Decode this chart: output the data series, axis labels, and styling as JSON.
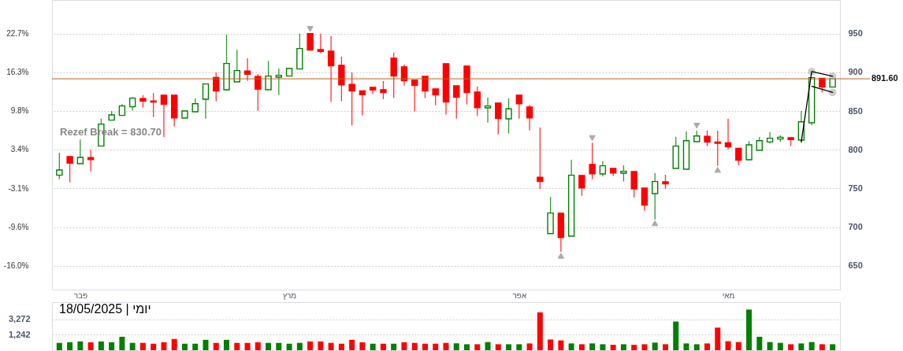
{
  "chart_data": [
    {
      "type": "candlestick",
      "categories": [
        null,
        null,
        "פבר",
        null,
        null,
        null,
        null,
        null,
        null,
        null,
        null,
        null,
        null,
        null,
        null,
        null,
        null,
        null,
        null,
        null,
        null,
        null,
        "מרץ",
        null,
        null,
        null,
        null,
        null,
        null,
        null,
        null,
        null,
        null,
        null,
        null,
        null,
        null,
        null,
        null,
        null,
        null,
        null,
        null,
        null,
        "אפר",
        null,
        null,
        null,
        null,
        null,
        null,
        null,
        null,
        null,
        null,
        null,
        null,
        null,
        null,
        null,
        null,
        null,
        null,
        null,
        "מאי",
        null,
        null,
        null,
        null,
        null,
        null,
        null,
        null,
        null,
        null
      ],
      "ohlc": [
        [
          767.0,
          796.1,
          761.9,
          773.8
        ],
        [
          791.1,
          791.1,
          757.8,
          782.6
        ],
        [
          781.9,
          813.1,
          781.9,
          790.0
        ],
        [
          789.7,
          799.9,
          772.1,
          787.3
        ],
        [
          804.6,
          839.9,
          804.6,
          833.1
        ],
        [
          838.2,
          849.7,
          838.2,
          845.0
        ],
        [
          844.3,
          858.9,
          844.3,
          856.5
        ],
        [
          855.5,
          868.0,
          850.4,
          866.7
        ],
        [
          866.0,
          870.4,
          854.4,
          862.6
        ],
        [
          862.9,
          873.1,
          842.2,
          861.6
        ],
        [
          870.4,
          870.4,
          816.1,
          858.5
        ],
        [
          870.4,
          870.4,
          830.0,
          841.2
        ],
        [
          840.9,
          850.0,
          840.9,
          850.0
        ],
        [
          849.0,
          866.3,
          849.0,
          859.5
        ],
        [
          865.3,
          885.0,
          840.2,
          885.0
        ],
        [
          893.4,
          899.5,
          862.6,
          875.8
        ],
        [
          877.5,
          948.7,
          876.1,
          911.4
        ],
        [
          887.7,
          929.0,
          887.7,
          902.3
        ],
        [
          901.6,
          918.2,
          889.0,
          897.5
        ],
        [
          894.5,
          897.8,
          850.4,
          878.2
        ],
        [
          877.5,
          914.8,
          877.5,
          895.1
        ],
        [
          893.8,
          905.0,
          870.7,
          896.2
        ],
        [
          895.1,
          905.0,
          895.1,
          905.0
        ],
        [
          904.3,
          950.0,
          904.3,
          930.7
        ],
        [
          950.0,
          950.0,
          928.7,
          928.7
        ],
        [
          929.4,
          950.0,
          924.6,
          927.0
        ],
        [
          927.3,
          946.7,
          861.6,
          908.4
        ],
        [
          909.0,
          920.2,
          862.6,
          883.9
        ],
        [
          884.3,
          899.9,
          831.1,
          875.8
        ],
        [
          876.1,
          876.1,
          844.3,
          871.1
        ],
        [
          880.6,
          880.6,
          871.7,
          877.2
        ],
        [
          877.5,
          888.7,
          865.3,
          873.8
        ],
        [
          918.2,
          925.3,
          866.7,
          895.1
        ],
        [
          907.0,
          910.0,
          882.9,
          889.0
        ],
        [
          889.7,
          889.7,
          849.4,
          882.9
        ],
        [
          894.8,
          894.8,
          866.7,
          875.8
        ],
        [
          878.5,
          878.5,
          857.5,
          870.7
        ],
        [
          911.1,
          911.1,
          845.3,
          861.6
        ],
        [
          882.6,
          882.6,
          840.2,
          867.7
        ],
        [
          908.0,
          908.0,
          858.5,
          873.8
        ],
        [
          874.5,
          881.6,
          843.3,
          854.4
        ],
        [
          854.1,
          867.3,
          835.1,
          856.5
        ],
        [
          860.2,
          860.2,
          819.9,
          840.2
        ],
        [
          839.9,
          866.3,
          820.9,
          852.8
        ],
        [
          870.4,
          870.4,
          840.2,
          859.5
        ],
        [
          855.1,
          857.8,
          825.0,
          841.2
        ],
        [
          764.3,
          828.7,
          749.4,
          758.9
        ],
        [
          691.7,
          739.2,
          691.7,
          718.2
        ],
        [
          717.8,
          717.8,
          668.0,
          686.6
        ],
        [
          688.3,
          787.0,
          688.3,
          767.0
        ],
        [
          766.7,
          766.7,
          740.5,
          750.7
        ],
        [
          780.9,
          809.0,
          761.9,
          769.0
        ],
        [
          768.7,
          784.9,
          765.3,
          779.2
        ],
        [
          775.8,
          775.8,
          766.0,
          770.0
        ],
        [
          769.7,
          779.9,
          758.9,
          772.1
        ],
        [
          771.7,
          771.7,
          738.5,
          749.4
        ],
        [
          750.4,
          750.4,
          720.9,
          728.4
        ],
        [
          743.3,
          769.7,
          709.7,
          758.9
        ],
        [
          758.5,
          767.7,
          749.4,
          755.8
        ],
        [
          775.8,
          816.5,
          775.8,
          804.6
        ],
        [
          774.8,
          823.6,
          774.8,
          811.7
        ],
        [
          810.4,
          824.6,
          810.4,
          817.8
        ],
        [
          817.2,
          824.6,
          804.6,
          809.7
        ],
        [
          810.0,
          824.6,
          779.2,
          808.3
        ],
        [
          809.0,
          839.9,
          800.2,
          803.6
        ],
        [
          801.9,
          801.9,
          779.9,
          786.3
        ],
        [
          787.0,
          811.1,
          787.0,
          806.3
        ],
        [
          799.2,
          816.5,
          799.2,
          811.7
        ],
        [
          810.0,
          822.6,
          808.0,
          814.8
        ],
        [
          813.8,
          818.5,
          810.0,
          816.1
        ],
        [
          815.5,
          816.5,
          804.6,
          813.1
        ],
        [
          812.4,
          850.0,
          810.0,
          836.1
        ],
        [
          834.8,
          893.1,
          831.4,
          893.1
        ],
        [
          892.4,
          892.4,
          874.1,
          880.9
        ],
        [
          880.9,
          891.6,
          880.9,
          891.6
        ]
      ],
      "colors": [
        "#008000",
        "#ff0000",
        "#008000",
        "#ff0000",
        "#008000",
        "#008000",
        "#008000",
        "#008000",
        "#ff0000",
        "#ff0000",
        "#ff0000",
        "#ff0000",
        "#008000",
        "#008000",
        "#008000",
        "#ff0000",
        "#008000",
        "#008000",
        "#ff0000",
        "#ff0000",
        "#008000",
        "#008000",
        "#008000",
        "#008000",
        "#ff0000",
        "#ff0000",
        "#ff0000",
        "#ff0000",
        "#ff0000",
        "#ff0000",
        "#ff0000",
        "#ff0000",
        "#ff0000",
        "#ff0000",
        "#ff0000",
        "#ff0000",
        "#ff0000",
        "#ff0000",
        "#ff0000",
        "#ff0000",
        "#ff0000",
        "#008000",
        "#ff0000",
        "#008000",
        "#ff0000",
        "#ff0000",
        "#ff0000",
        "#008000",
        "#ff0000",
        "#008000",
        "#ff0000",
        "#ff0000",
        "#008000",
        "#ff0000",
        "#008000",
        "#ff0000",
        "#ff0000",
        "#008000",
        "#ff0000",
        "#008000",
        "#008000",
        "#008000",
        "#ff0000",
        "#ff0000",
        "#ff0000",
        "#ff0000",
        "#008000",
        "#008000",
        "#008000",
        "#008000",
        "#ff0000",
        "#008000",
        "#008000",
        "#ff0000",
        "#008000"
      ],
      "ylim": [
        619.2,
        993.4
      ],
      "yticks": [
        650,
        700,
        750,
        800,
        850,
        900,
        950
      ],
      "y2lim": [
        -20.0,
        28.3
      ],
      "y2ticks": [
        {
          "value": 22.7,
          "label": "22.7%"
        },
        {
          "value": 16.3,
          "label": "16.3%"
        },
        {
          "value": 9.8,
          "label": "9.8%"
        },
        {
          "value": 3.4,
          "label": "3.4%"
        },
        {
          "value": -3.1,
          "label": "-3.1%"
        },
        {
          "value": -9.6,
          "label": "-9.6%"
        },
        {
          "value": -16.0,
          "label": "-16.0%"
        }
      ],
      "grid": "y",
      "ref_lines": [
        {
          "axis": "y",
          "value": 891.6,
          "label": "891.60",
          "color": "#c0601c"
        }
      ],
      "annotations": [
        "Rezef Break = 830.70"
      ],
      "series": [
        {
          "type": "scatter",
          "color": "#888888",
          "marker": "triangle",
          "values": [
            null,
            null,
            null,
            null,
            null,
            null,
            null,
            null,
            null,
            null,
            null,
            null,
            null,
            null,
            null,
            null,
            null,
            null,
            null,
            null,
            null,
            null,
            null,
            null,
            956,
            null,
            null,
            null,
            null,
            null,
            null,
            null,
            null,
            null,
            null,
            null,
            null,
            null,
            null,
            null,
            null,
            null,
            null,
            null,
            null,
            null,
            null,
            null,
            663,
            null,
            null,
            815,
            null,
            null,
            null,
            null,
            null,
            705,
            null,
            null,
            null,
            831,
            null,
            774,
            null,
            null,
            null,
            null,
            null,
            null,
            null,
            null,
            null,
            null,
            null
          ]
        },
        {
          "type": "line",
          "color": "#000000",
          "marker": "none",
          "values": [
            null,
            null,
            null,
            null,
            null,
            null,
            null,
            null,
            null,
            null,
            null,
            null,
            null,
            null,
            null,
            null,
            null,
            null,
            null,
            null,
            null,
            null,
            null,
            null,
            null,
            null,
            null,
            null,
            null,
            null,
            null,
            null,
            null,
            null,
            null,
            null,
            null,
            null,
            null,
            null,
            null,
            null,
            null,
            null,
            null,
            null,
            null,
            null,
            null,
            null,
            null,
            null,
            null,
            null,
            null,
            null,
            null,
            null,
            null,
            null,
            null,
            null,
            null,
            null,
            null,
            null,
            null,
            null,
            null,
            null,
            null,
            810,
            901,
            null,
            895
          ]
        },
        {
          "type": "line",
          "color": "#000000",
          "marker": "none",
          "values": [
            null,
            null,
            null,
            null,
            null,
            null,
            null,
            null,
            null,
            null,
            null,
            null,
            null,
            null,
            null,
            null,
            null,
            null,
            null,
            null,
            null,
            null,
            null,
            null,
            null,
            null,
            null,
            null,
            null,
            null,
            null,
            null,
            null,
            null,
            null,
            null,
            null,
            null,
            null,
            null,
            null,
            null,
            null,
            null,
            null,
            null,
            null,
            null,
            null,
            null,
            null,
            null,
            null,
            null,
            null,
            null,
            null,
            null,
            null,
            null,
            null,
            null,
            null,
            null,
            null,
            null,
            null,
            null,
            null,
            null,
            null,
            null,
            882,
            null,
            874
          ]
        },
        {
          "type": "scatter",
          "color": "#aaaaaa",
          "marker": "circle",
          "values": [
            null,
            null,
            null,
            null,
            null,
            null,
            null,
            null,
            null,
            null,
            null,
            null,
            null,
            null,
            null,
            null,
            null,
            null,
            null,
            null,
            null,
            null,
            null,
            null,
            null,
            null,
            null,
            null,
            null,
            null,
            null,
            null,
            null,
            null,
            null,
            null,
            null,
            null,
            null,
            null,
            null,
            null,
            null,
            null,
            null,
            null,
            null,
            null,
            null,
            null,
            null,
            null,
            null,
            null,
            null,
            null,
            null,
            null,
            null,
            null,
            null,
            null,
            null,
            null,
            null,
            null,
            null,
            null,
            null,
            null,
            null,
            null,
            901,
            null,
            895
          ]
        },
        {
          "type": "scatter",
          "color": "#aaaaaa",
          "marker": "circle",
          "values": [
            null,
            null,
            null,
            null,
            null,
            null,
            null,
            null,
            null,
            null,
            null,
            null,
            null,
            null,
            null,
            null,
            null,
            null,
            null,
            null,
            null,
            null,
            null,
            null,
            null,
            null,
            null,
            null,
            null,
            null,
            null,
            null,
            null,
            null,
            null,
            null,
            null,
            null,
            null,
            null,
            null,
            null,
            null,
            null,
            null,
            null,
            null,
            null,
            null,
            null,
            null,
            null,
            null,
            null,
            null,
            null,
            null,
            null,
            null,
            null,
            null,
            null,
            null,
            null,
            null,
            null,
            null,
            null,
            null,
            null,
            null,
            null,
            null,
            null,
            874
          ]
        }
      ]
    },
    {
      "type": "bar",
      "categories": [
        null,
        null,
        null,
        null,
        null,
        null,
        null,
        null,
        null,
        null,
        null,
        null,
        null,
        null,
        null,
        null,
        null,
        null,
        null,
        null,
        null,
        null,
        null,
        null,
        null,
        null,
        null,
        null,
        null,
        null,
        null,
        null,
        null,
        null,
        null,
        null,
        null,
        null,
        null,
        null,
        null,
        null,
        null,
        null,
        null,
        null,
        null,
        null,
        null,
        null,
        null,
        null,
        null,
        null,
        null,
        null,
        null,
        null,
        null,
        null,
        null,
        null,
        null,
        null,
        null,
        null,
        null,
        null,
        null,
        null,
        null,
        null,
        null,
        null,
        null
      ],
      "values": [
        722,
        751,
        792,
        751,
        792,
        751,
        1074,
        722,
        722,
        685,
        751,
        929,
        685,
        685,
        881,
        722,
        881,
        722,
        722,
        751,
        722,
        722,
        685,
        722,
        792,
        792,
        722,
        685,
        881,
        751,
        685,
        685,
        685,
        751,
        722,
        685,
        685,
        722,
        698,
        662,
        662,
        762,
        662,
        662,
        662,
        698,
        5200,
        898,
        847,
        698,
        662,
        698,
        662,
        637,
        662,
        637,
        662,
        736,
        662,
        2870,
        698,
        662,
        698,
        1939,
        804,
        762,
        6220,
        1074,
        762,
        722,
        662,
        698,
        762,
        662,
        662
      ],
      "colors": [
        "#008000",
        "#008000",
        "#008000",
        "#ff0000",
        "#008000",
        "#008000",
        "#008000",
        "#008000",
        "#ff0000",
        "#ff0000",
        "#ff0000",
        "#ff0000",
        "#008000",
        "#008000",
        "#008000",
        "#ff0000",
        "#008000",
        "#ff0000",
        "#ff0000",
        "#ff0000",
        "#008000",
        "#008000",
        "#008000",
        "#008000",
        "#ff0000",
        "#ff0000",
        "#ff0000",
        "#ff0000",
        "#ff0000",
        "#ff0000",
        "#008000",
        "#ff0000",
        "#008000",
        "#ff0000",
        "#ff0000",
        "#ff0000",
        "#ff0000",
        "#ff0000",
        "#008000",
        "#008000",
        "#ff0000",
        "#008000",
        "#ff0000",
        "#008000",
        "#008000",
        "#ff0000",
        "#ff0000",
        "#ff0000",
        "#ff0000",
        "#008000",
        "#ff0000",
        "#008000",
        "#008000",
        "#ff0000",
        "#008000",
        "#ff0000",
        "#ff0000",
        "#008000",
        "#ff0000",
        "#008000",
        "#008000",
        "#008000",
        "#ff0000",
        "#ff0000",
        "#ff0000",
        "#ff0000",
        "#008000",
        "#008000",
        "#008000",
        "#008000",
        "#ff0000",
        "#008000",
        "#008000",
        "#ff0000",
        "#008000"
      ],
      "ylim": [
        450,
        10000
      ],
      "yticks": [
        {
          "value": 1242,
          "label": "1,242"
        },
        {
          "value": 3272,
          "label": "3,272"
        }
      ],
      "log": "y",
      "grid": "y",
      "tick_labels": "y",
      "annotations": [
        "יומי | 18/05/2025"
      ]
    }
  ]
}
